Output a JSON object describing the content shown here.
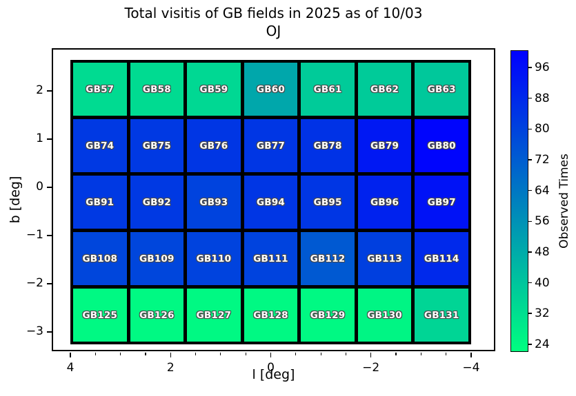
{
  "title": "Total visitis of GB fields in 2025 as of 10/03",
  "subtitle": "OJ",
  "axes": {
    "xlabel": "l [deg]",
    "ylabel": "b [deg]",
    "x_major_ticks": [
      {
        "label": "4",
        "value": 4
      },
      {
        "label": "2",
        "value": 2
      },
      {
        "label": "0",
        "value": 0
      },
      {
        "label": "−2",
        "value": -2
      },
      {
        "label": "−4",
        "value": -4
      }
    ],
    "x_minor_tick_values": [
      3.5,
      3,
      2.5,
      1.5,
      1,
      0.5,
      -0.5,
      -1,
      -1.5,
      -2.5,
      -3,
      -3.5
    ],
    "y_major_ticks": [
      {
        "label": "2",
        "value": 2
      },
      {
        "label": "1",
        "value": 1
      },
      {
        "label": "0",
        "value": 0
      },
      {
        "label": "−1",
        "value": -1
      },
      {
        "label": "−2",
        "value": -2
      },
      {
        "label": "−3",
        "value": -3
      }
    ]
  },
  "colorbar": {
    "label": "Observed Times",
    "ticks": [
      96,
      88,
      80,
      72,
      64,
      56,
      48,
      40,
      32,
      24
    ],
    "scale_min": 22,
    "scale_max": 100.5,
    "color_low": "#00ff80",
    "color_mid": "#0080bf",
    "color_high": "#0000ff"
  },
  "chart_data": {
    "type": "heatmap",
    "title": "Total visitis of GB fields in 2025 as of 10/03",
    "subtitle": "OJ",
    "xlabel": "l [deg]",
    "ylabel": "b [deg]",
    "colorbar_label": "Observed Times",
    "colormap": "green-to-blue (matplotlib winter_r)",
    "value_range": [
      22,
      100.5
    ],
    "xlim": [
      4.45,
      -4.55
    ],
    "ylim": [
      -3.45,
      2.85
    ],
    "grid_columns_center_l_deg": [
      3.45,
      2.3,
      1.15,
      0,
      -1.15,
      -2.3,
      -3.45
    ],
    "grid_rows_center_b_deg": [
      2.05,
      0.88,
      -0.29,
      -1.46,
      -2.63
    ],
    "rows": [
      [
        {
          "label": "GB57",
          "value": 33
        },
        {
          "label": "GB58",
          "value": 33
        },
        {
          "label": "GB59",
          "value": 34
        },
        {
          "label": "GB60",
          "value": 49
        },
        {
          "label": "GB61",
          "value": 38
        },
        {
          "label": "GB62",
          "value": 38
        },
        {
          "label": "GB63",
          "value": 39
        }
      ],
      [
        {
          "label": "GB74",
          "value": 83
        },
        {
          "label": "GB75",
          "value": 83
        },
        {
          "label": "GB76",
          "value": 84
        },
        {
          "label": "GB77",
          "value": 84
        },
        {
          "label": "GB78",
          "value": 85
        },
        {
          "label": "GB79",
          "value": 93
        },
        {
          "label": "GB80",
          "value": 99
        }
      ],
      [
        {
          "label": "GB91",
          "value": 83
        },
        {
          "label": "GB92",
          "value": 83
        },
        {
          "label": "GB93",
          "value": 80
        },
        {
          "label": "GB94",
          "value": 84
        },
        {
          "label": "GB95",
          "value": 84
        },
        {
          "label": "GB96",
          "value": 90
        },
        {
          "label": "GB97",
          "value": 95
        }
      ],
      [
        {
          "label": "GB108",
          "value": 79
        },
        {
          "label": "GB109",
          "value": 79
        },
        {
          "label": "GB110",
          "value": 80
        },
        {
          "label": "GB111",
          "value": 80
        },
        {
          "label": "GB112",
          "value": 73
        },
        {
          "label": "GB113",
          "value": 81
        },
        {
          "label": "GB114",
          "value": 88
        }
      ],
      [
        {
          "label": "GB125",
          "value": 24
        },
        {
          "label": "GB126",
          "value": 24
        },
        {
          "label": "GB127",
          "value": 24
        },
        {
          "label": "GB128",
          "value": 24
        },
        {
          "label": "GB129",
          "value": 24
        },
        {
          "label": "GB130",
          "value": 25
        },
        {
          "label": "GB131",
          "value": 35
        }
      ]
    ]
  }
}
